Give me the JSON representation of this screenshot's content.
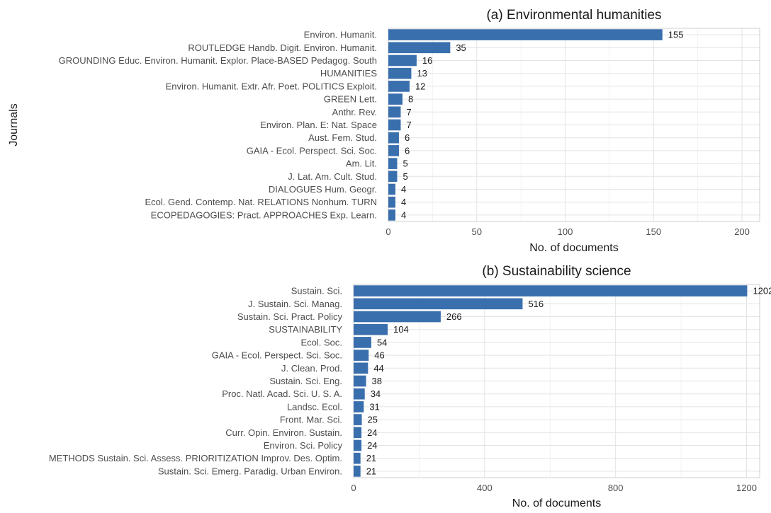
{
  "chart_data": [
    {
      "type": "bar",
      "orientation": "horizontal",
      "title": "(a) Environmental humanities",
      "xlabel": "No. of documents",
      "ylabel": "Journals",
      "xlim": [
        0,
        210
      ],
      "xticks": [
        0,
        50,
        100,
        150,
        200
      ],
      "grid": true,
      "bar_color": "#3a6fae",
      "categories": [
        "Environ. Humanit.",
        "ROUTLEDGE Handb. Digit. Environ. Humanit.",
        "GROUNDING Educ. Environ. Humanit. Explor. Place-BASED Pedagog. South",
        "HUMANITIES",
        "Environ. Humanit. Extr. Afr. Poet. POLITICS Exploit.",
        "GREEN Lett.",
        "Anthr. Rev.",
        "Environ. Plan. E: Nat. Space",
        "Aust. Fem. Stud.",
        "GAIA - Ecol. Perspect. Sci. Soc.",
        "Am. Lit.",
        "J. Lat. Am. Cult. Stud.",
        "DIALOGUES Hum. Geogr.",
        "Ecol. Gend. Contemp. Nat. RELATIONS Nonhum. TURN",
        "ECOPEDAGOGIES: Pract. APPROACHES Exp. Learn."
      ],
      "values": [
        155,
        35,
        16,
        13,
        12,
        8,
        7,
        7,
        6,
        6,
        5,
        5,
        4,
        4,
        4
      ]
    },
    {
      "type": "bar",
      "orientation": "horizontal",
      "title": "(b) Sustainability science",
      "xlabel": "No. of documents",
      "ylabel": "",
      "xlim": [
        0,
        1240
      ],
      "xticks": [
        0,
        400,
        800,
        1200
      ],
      "grid": true,
      "bar_color": "#3a6fae",
      "categories": [
        "Sustain. Sci.",
        "J. Sustain. Sci. Manag.",
        "Sustain. Sci. Pract. Policy",
        "SUSTAINABILITY",
        "Ecol. Soc.",
        "GAIA - Ecol. Perspect. Sci. Soc.",
        "J. Clean. Prod.",
        "Sustain. Sci. Eng.",
        "Proc. Natl. Acad. Sci. U. S. A.",
        "Landsc. Ecol.",
        "Front. Mar. Sci.",
        "Curr. Opin. Environ. Sustain.",
        "Environ. Sci. Policy",
        "METHODS Sustain. Sci. Assess. PRIORITIZATION Improv. Des. Optim.",
        "Sustain. Sci. Emerg. Paradig. Urban Environ."
      ],
      "values": [
        1202,
        516,
        266,
        104,
        54,
        46,
        44,
        38,
        34,
        31,
        25,
        24,
        24,
        21,
        21
      ]
    }
  ]
}
